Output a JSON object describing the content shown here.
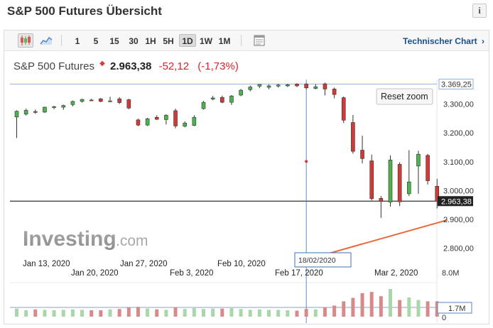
{
  "page": {
    "title": "S&P 500 Futures Übersicht",
    "info_label": "i"
  },
  "toolbar": {
    "timeframes": [
      "1",
      "5",
      "15",
      "30",
      "1H",
      "5H",
      "1D",
      "1W",
      "1M"
    ],
    "active_timeframe": "1D",
    "technical_chart_label": "Technischer Chart",
    "chevron": "›"
  },
  "quote": {
    "name": "S&P 500 Futures",
    "price": "2.963,38",
    "change": "-52,12",
    "change_pct": "(-1,73%)"
  },
  "chart": {
    "reset_zoom_label": "Reset zoom",
    "price_labels": [
      "3.300,00",
      "3.200,00",
      "3.100,00",
      "3.000,00",
      "2.900,00",
      "2.800,00"
    ],
    "high_label": "3.369,25",
    "current_label": "2.963,38",
    "volume_labels": [
      "8.0M",
      "1.7M",
      "0"
    ],
    "crosshair_date": "18/02/2020",
    "dates_row1": [
      "Jan 13, 2020",
      "Jan 27, 2020",
      "Feb 10, 2020",
      "Feb 17, 2020"
    ],
    "dates_row2": [
      "Jan 20, 2020",
      "Feb 3, 2020",
      "Mar 2, 2020"
    ],
    "watermark": {
      "main": "Investing",
      "suffix": ".com"
    },
    "colors": {
      "up": "#4db34d",
      "down": "#d23a3a",
      "vol_up": "#a9d7a9",
      "vol_down": "#d88a8a",
      "crosshair": "#3c6fb4",
      "trendline": "#e8673c"
    }
  },
  "chart_data": {
    "type": "candlestick",
    "y_unit": "index points",
    "ylim": [
      2745,
      3385
    ],
    "volume_ylim": [
      0,
      8000000
    ],
    "candles": [
      {
        "o": 3255,
        "h": 3278,
        "l": 3182,
        "c": 3275
      },
      {
        "o": 3265,
        "h": 3284,
        "l": 3260,
        "c": 3278
      },
      {
        "o": 3274,
        "h": 3281,
        "l": 3266,
        "c": 3273
      },
      {
        "o": 3272,
        "h": 3291,
        "l": 3269,
        "c": 3289
      },
      {
        "o": 3288,
        "h": 3294,
        "l": 3282,
        "c": 3291
      },
      {
        "o": 3289,
        "h": 3298,
        "l": 3280,
        "c": 3295
      },
      {
        "o": 3298,
        "h": 3312,
        "l": 3292,
        "c": 3309
      },
      {
        "o": 3309,
        "h": 3318,
        "l": 3305,
        "c": 3316
      },
      {
        "o": 3314,
        "h": 3318,
        "l": 3311,
        "c": 3313
      },
      {
        "o": 3318,
        "h": 3321,
        "l": 3306,
        "c": 3309
      },
      {
        "o": 3310,
        "h": 3325,
        "l": 3306,
        "c": 3311
      },
      {
        "o": 3318,
        "h": 3324,
        "l": 3300,
        "c": 3305
      },
      {
        "o": 3315,
        "h": 3318,
        "l": 3282,
        "c": 3286
      },
      {
        "o": 3245,
        "h": 3249,
        "l": 3223,
        "c": 3227
      },
      {
        "o": 3227,
        "h": 3252,
        "l": 3224,
        "c": 3249
      },
      {
        "o": 3254,
        "h": 3261,
        "l": 3245,
        "c": 3247
      },
      {
        "o": 3246,
        "h": 3265,
        "l": 3229,
        "c": 3261
      },
      {
        "o": 3277,
        "h": 3284,
        "l": 3216,
        "c": 3224
      },
      {
        "o": 3223,
        "h": 3240,
        "l": 3219,
        "c": 3234
      },
      {
        "o": 3226,
        "h": 3261,
        "l": 3223,
        "c": 3254
      },
      {
        "o": 3284,
        "h": 3311,
        "l": 3281,
        "c": 3306
      },
      {
        "o": 3317,
        "h": 3328,
        "l": 3313,
        "c": 3321
      },
      {
        "o": 3323,
        "h": 3329,
        "l": 3303,
        "c": 3306
      },
      {
        "o": 3306,
        "h": 3331,
        "l": 3297,
        "c": 3328
      },
      {
        "o": 3331,
        "h": 3352,
        "l": 3327,
        "c": 3348
      },
      {
        "o": 3350,
        "h": 3364,
        "l": 3344,
        "c": 3359
      },
      {
        "o": 3362,
        "h": 3369,
        "l": 3355,
        "c": 3368
      },
      {
        "o": 3358,
        "h": 3368,
        "l": 3351,
        "c": 3363
      },
      {
        "o": 3362,
        "h": 3370,
        "l": 3357,
        "c": 3366
      },
      {
        "o": 3363,
        "h": 3370,
        "l": 3359,
        "c": 3367
      },
      {
        "o": 3369,
        "h": 3372,
        "l": 3359,
        "c": 3363
      },
      {
        "o": 3369,
        "h": 3373,
        "l": 3351,
        "c": 3356
      },
      {
        "o": 3354,
        "h": 3369,
        "l": 3351,
        "c": 3360
      },
      {
        "o": 3370,
        "h": 3374,
        "l": 3330,
        "c": 3352
      },
      {
        "o": 3352,
        "h": 3357,
        "l": 3320,
        "c": 3333
      },
      {
        "o": 3322,
        "h": 3326,
        "l": 3234,
        "c": 3244
      },
      {
        "o": 3236,
        "h": 3262,
        "l": 3128,
        "c": 3136
      },
      {
        "o": 3140,
        "h": 3190,
        "l": 3094,
        "c": 3111
      },
      {
        "o": 3103,
        "h": 3125,
        "l": 2966,
        "c": 2972
      },
      {
        "o": 2973,
        "h": 2981,
        "l": 2905,
        "c": 2962
      },
      {
        "o": 2960,
        "h": 3122,
        "l": 2944,
        "c": 3106
      },
      {
        "o": 3091,
        "h": 3098,
        "l": 2946,
        "c": 2961
      },
      {
        "o": 2989,
        "h": 3140,
        "l": 2981,
        "c": 3030
      },
      {
        "o": 3085,
        "h": 3138,
        "l": 2989,
        "c": 3126
      },
      {
        "o": 3122,
        "h": 3127,
        "l": 3021,
        "c": 3034
      },
      {
        "o": 3015,
        "h": 3041,
        "l": 2938,
        "c": 2963
      }
    ],
    "volumes_millions": [
      1.9,
      1.5,
      1.7,
      1.6,
      1.5,
      1.6,
      1.7,
      1.6,
      1.5,
      1.5,
      1.7,
      1.8,
      2.1,
      2.3,
      1.9,
      1.7,
      1.6,
      2.2,
      1.8,
      2.0,
      1.8,
      1.9,
      1.9,
      2.0,
      1.8,
      1.6,
      1.7,
      1.6,
      1.6,
      1.5,
      1.4,
      1.8,
      1.7,
      2.2,
      2.6,
      3.6,
      4.4,
      5.5,
      5.8,
      4.8,
      6.5,
      3.9,
      4.5,
      3.9,
      3.6,
      3.6
    ],
    "levels": {
      "current": 2963.38,
      "session_high": 3369.25,
      "crosshair_price": 3101
    },
    "trendline": {
      "from": {
        "date": "18/02/2020",
        "price": 2760
      },
      "to": {
        "date": "Mar 4, 2020",
        "price": 2898
      }
    },
    "grid": false,
    "watermark_text": "Investing.com"
  }
}
